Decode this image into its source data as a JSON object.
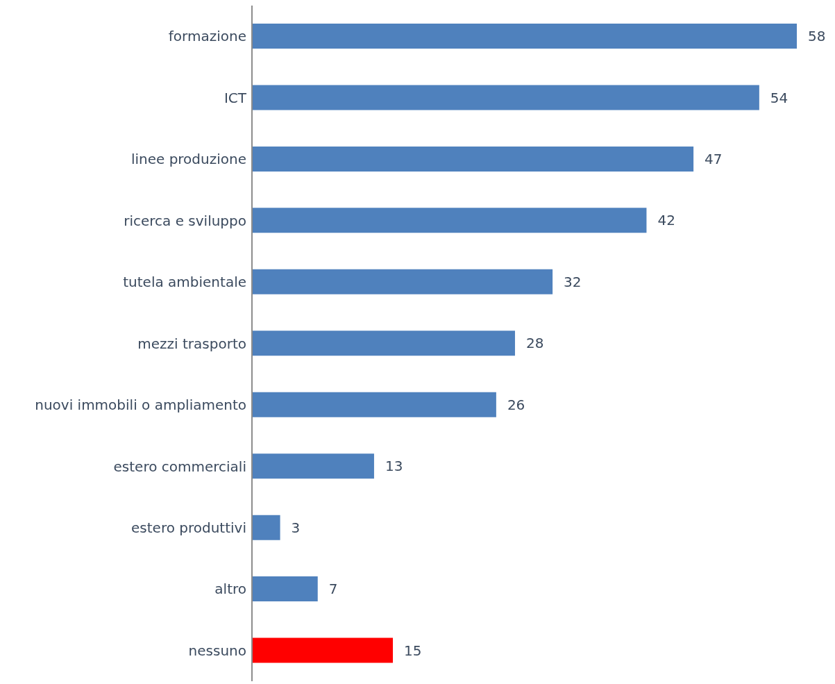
{
  "chart_data": {
    "type": "bar",
    "orientation": "horizontal",
    "categories": [
      "formazione",
      "ICT",
      "linee produzione",
      "ricerca e sviluppo",
      "tutela ambientale",
      "mezzi trasporto",
      "nuovi immobili o ampliamento",
      "estero commerciali",
      "estero produttivi",
      "altro",
      "nessuno"
    ],
    "values": [
      58,
      54,
      47,
      42,
      32,
      28,
      26,
      13,
      3,
      7,
      15
    ],
    "colors": [
      "#4f81bd",
      "#4f81bd",
      "#4f81bd",
      "#4f81bd",
      "#4f81bd",
      "#4f81bd",
      "#4f81bd",
      "#4f81bd",
      "#4f81bd",
      "#4f81bd",
      "#ff0000"
    ],
    "data_labels": true,
    "grid": false,
    "legend": false
  }
}
